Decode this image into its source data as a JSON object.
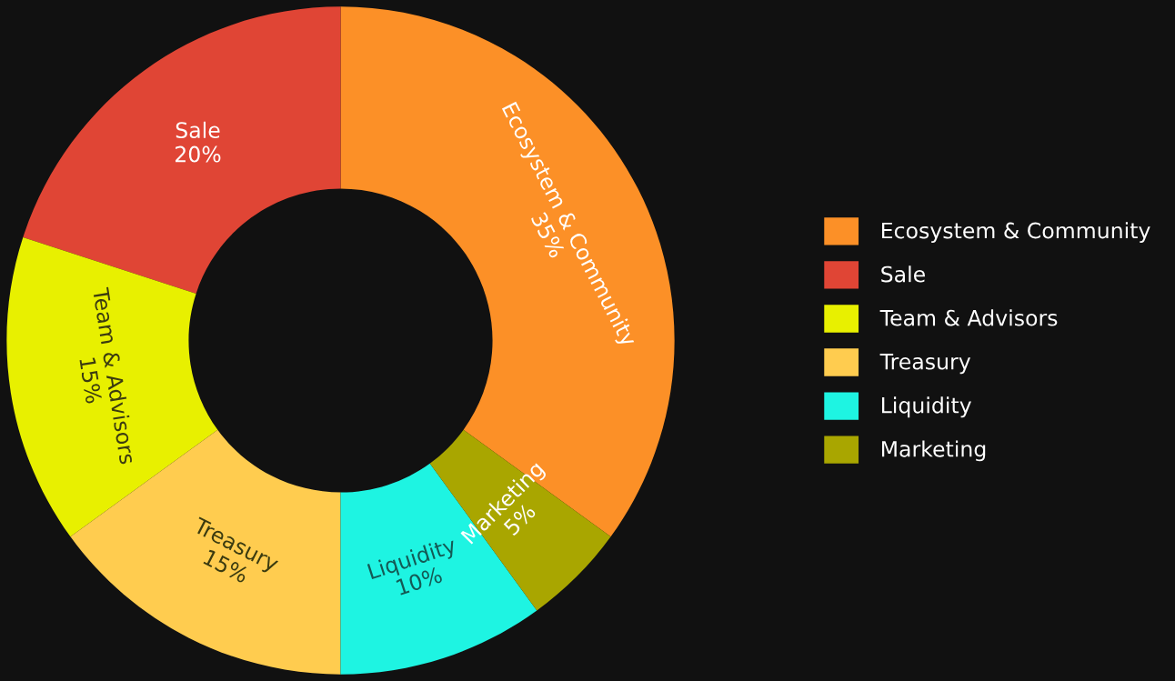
{
  "chart_data": {
    "type": "donut",
    "categories": [
      "Ecosystem & Community",
      "Sale",
      "Team & Advisors",
      "Treasury",
      "Liquidity",
      "Marketing"
    ],
    "values": [
      35,
      20,
      15,
      15,
      10,
      5
    ],
    "colors": [
      "#fc9027",
      "#e04535",
      "#e8f000",
      "#ffcc4f",
      "#1ef4e2",
      "#a9a600"
    ],
    "value_labels": [
      "35%",
      "20%",
      "15%",
      "15%",
      "10%",
      "5%"
    ],
    "legend": "right"
  }
}
